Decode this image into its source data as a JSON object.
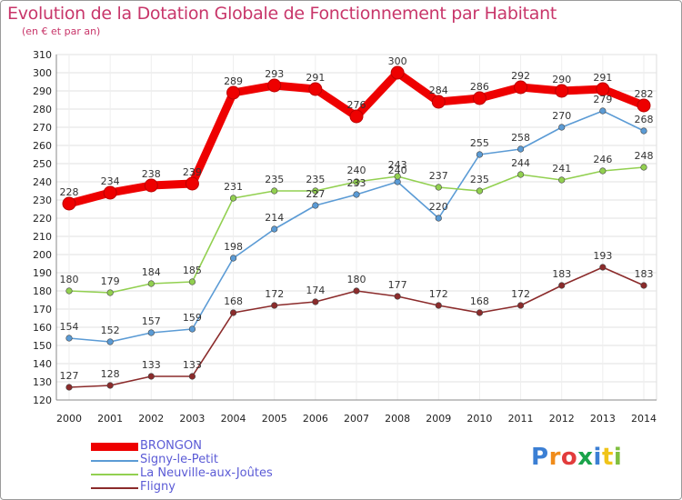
{
  "chart_data": {
    "type": "line",
    "title": "Evolution de la Dotation Globale de Fonctionnement par Habitant",
    "subtitle": "(en € et par an)",
    "xlabel": "",
    "ylabel": "",
    "categories": [
      "2000",
      "2001",
      "2002",
      "2003",
      "2004",
      "2005",
      "2006",
      "2007",
      "2008",
      "2009",
      "2010",
      "2011",
      "2012",
      "2013",
      "2014"
    ],
    "ylim": [
      120,
      310
    ],
    "yticks": [
      120,
      130,
      140,
      150,
      160,
      170,
      180,
      190,
      200,
      210,
      220,
      230,
      240,
      250,
      260,
      270,
      280,
      290,
      300,
      310
    ],
    "grid": true,
    "legend_position": "bottom-left",
    "series": [
      {
        "name": "BRONGON",
        "color": "#ee0000",
        "values": [
          228,
          234,
          238,
          239,
          289,
          293,
          291,
          276,
          300,
          284,
          286,
          292,
          290,
          291,
          282
        ]
      },
      {
        "name": "Signy-le-Petit",
        "color": "#5b9bd5",
        "values": [
          154,
          152,
          157,
          159,
          198,
          214,
          227,
          233,
          240,
          220,
          255,
          258,
          270,
          279,
          268
        ]
      },
      {
        "name": "La Neuville-aux-Joûtes",
        "color": "#92d050",
        "values": [
          180,
          179,
          184,
          185,
          231,
          235,
          235,
          240,
          243,
          237,
          235,
          244,
          241,
          246,
          248
        ]
      },
      {
        "name": "Fligny",
        "color": "#8b2b2b",
        "values": [
          127,
          128,
          133,
          133,
          168,
          172,
          174,
          180,
          177,
          172,
          168,
          172,
          183,
          193,
          183
        ]
      }
    ]
  },
  "logo": {
    "text": "Proxiti"
  }
}
